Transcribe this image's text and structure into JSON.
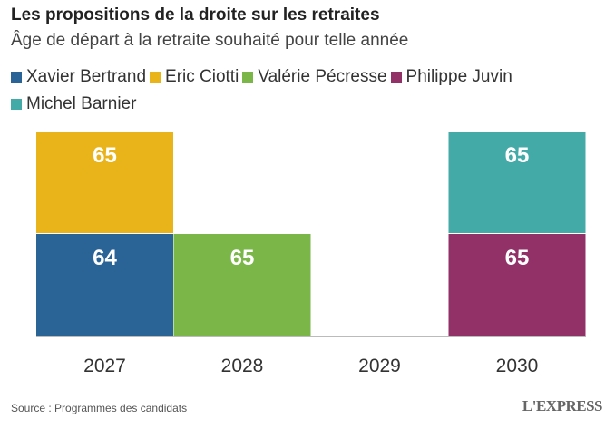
{
  "header": {
    "title": "Les propositions de la droite sur les retraites",
    "subtitle": "Âge de départ à la retraite souhaité pour telle année"
  },
  "footer": {
    "source": "Source : Programmes des candidats",
    "logo": "L'EXPRESS"
  },
  "chart_data": {
    "type": "bar",
    "title": "Les propositions de la droite sur les retraites",
    "subtitle": "Âge de départ à la retraite souhaité pour telle année",
    "categories": [
      "2027",
      "2028",
      "2029",
      "2030"
    ],
    "series": [
      {
        "name": "Xavier Bertrand",
        "color": "#2a6496",
        "values": [
          64,
          null,
          null,
          null
        ]
      },
      {
        "name": "Eric Ciotti",
        "color": "#e8b41a",
        "values": [
          65,
          null,
          null,
          null
        ]
      },
      {
        "name": "Valérie Pécresse",
        "color": "#7ab648",
        "values": [
          null,
          65,
          null,
          null
        ]
      },
      {
        "name": "Philippe Juvin",
        "color": "#923068",
        "values": [
          null,
          null,
          null,
          65
        ]
      },
      {
        "name": "Michel Barnier",
        "color": "#44aaa8",
        "values": [
          null,
          null,
          null,
          65
        ]
      }
    ],
    "stacks": [
      [
        {
          "series": 0,
          "label": "64"
        },
        {
          "series": 1,
          "label": "65"
        }
      ],
      [
        {
          "series": 2,
          "label": "65"
        }
      ],
      [],
      [
        {
          "series": 3,
          "label": "65"
        },
        {
          "series": 4,
          "label": "65"
        }
      ]
    ],
    "legend_position": "top",
    "grid": false
  }
}
